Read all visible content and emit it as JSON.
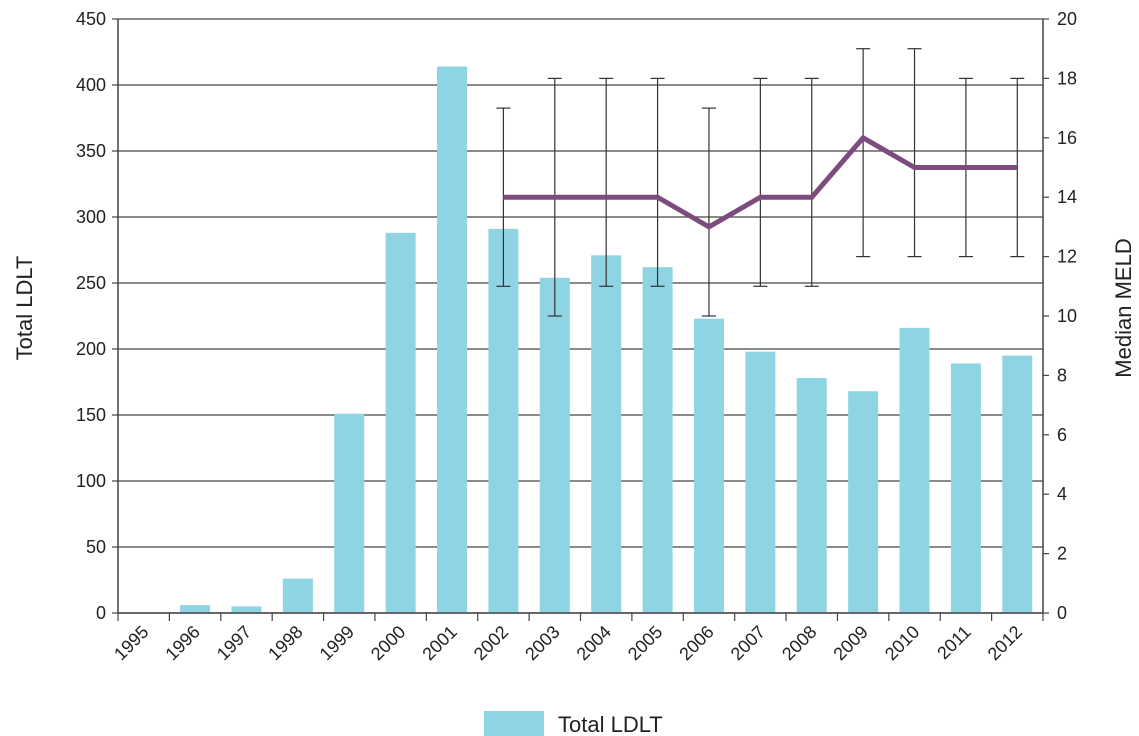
{
  "chart_data": {
    "type": "bar",
    "categories": [
      "1995",
      "1996",
      "1997",
      "1998",
      "1999",
      "2000",
      "2001",
      "2002",
      "2003",
      "2004",
      "2005",
      "2006",
      "2007",
      "2008",
      "2009",
      "2010",
      "2011",
      "2012"
    ],
    "series": [
      {
        "name": "Total LDLT",
        "type": "bar",
        "axis": "left",
        "color": "#8fd4e3",
        "values": [
          0,
          6,
          5,
          26,
          151,
          288,
          414,
          291,
          254,
          271,
          262,
          223,
          198,
          178,
          168,
          216,
          189,
          195
        ]
      },
      {
        "type": "line",
        "axis": "right",
        "color": "#7d4b7e",
        "values": [
          null,
          null,
          null,
          null,
          null,
          null,
          null,
          14,
          14,
          14,
          14,
          13,
          14,
          14,
          16,
          15,
          15,
          15
        ],
        "error_low": [
          null,
          null,
          null,
          null,
          null,
          null,
          null,
          11,
          10,
          11,
          11,
          10,
          11,
          11,
          12,
          12,
          12,
          12
        ],
        "error_high": [
          null,
          null,
          null,
          null,
          null,
          null,
          null,
          17,
          18,
          18,
          18,
          17,
          18,
          18,
          19,
          19,
          18,
          18
        ]
      }
    ],
    "ylabel": "Total LDLT",
    "ylim": [
      0,
      450
    ],
    "yticks": [
      "0",
      "50",
      "100",
      "150",
      "200",
      "250",
      "300",
      "350",
      "400",
      "450"
    ],
    "y2label": "Median MELD",
    "y2lim": [
      0,
      20
    ],
    "y2ticks": [
      "0",
      "2",
      "4",
      "6",
      "8",
      "10",
      "12",
      "14",
      "16",
      "18",
      "20"
    ],
    "grid": true,
    "legend_position": "bottom-center",
    "legend": [
      {
        "label": "Total LDLT",
        "color": "#8fd4e3"
      }
    ]
  }
}
